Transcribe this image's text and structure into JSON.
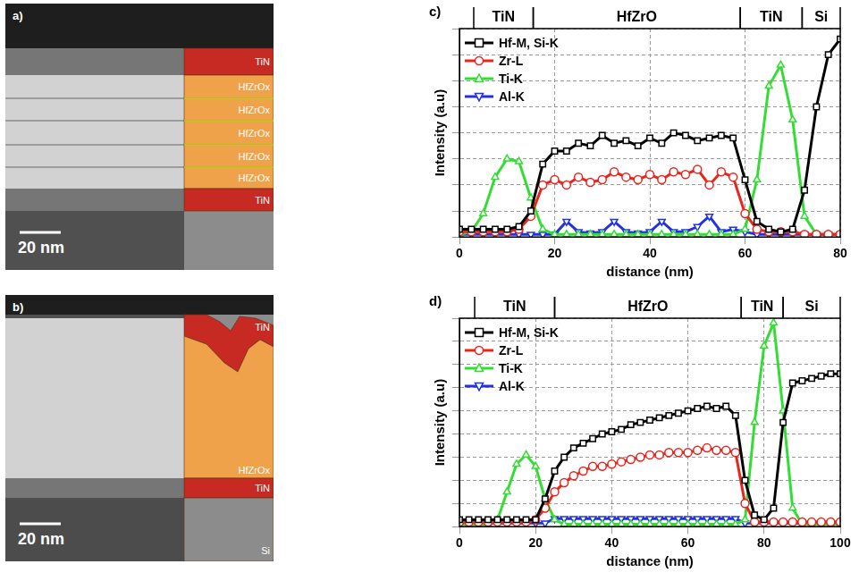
{
  "micrographs": [
    {
      "label": "a)",
      "layers": [
        "TiN",
        "HfZrOx",
        "HfZrOx",
        "HfZrOx",
        "HfZrOx",
        "HfZrOx",
        "TiN"
      ],
      "scale_bar": "20 nm"
    },
    {
      "label": "b)",
      "layers": [
        "TiN",
        "HfZrOx",
        "TiN",
        "Si"
      ],
      "scale_bar": "20 nm"
    }
  ],
  "chart_data": [
    {
      "type": "line",
      "label": "c)",
      "xlabel": "distance (nm)",
      "ylabel": "Intensity (a.u)",
      "xlim": [
        0,
        80
      ],
      "xticks": [
        0,
        20,
        40,
        60,
        80
      ],
      "ylim": [
        0,
        8
      ],
      "yticks": [
        0,
        1,
        2,
        3,
        4,
        5,
        6,
        7,
        8
      ],
      "grid": true,
      "legend": "upper left",
      "tick_labels": "x",
      "regions": [
        {
          "label": "TiN",
          "start": 3,
          "end": 15.5
        },
        {
          "label": "HfZrO",
          "start": 15.5,
          "end": 59
        },
        {
          "label": "TiN",
          "start": 59,
          "end": 72
        },
        {
          "label": "Si",
          "start": 72,
          "end": 80
        }
      ],
      "x": [
        0,
        2.5,
        5,
        7.5,
        10,
        12.5,
        15,
        17.5,
        20,
        22.5,
        25,
        27.5,
        30,
        32.5,
        35,
        37.5,
        40,
        42.5,
        45,
        47.5,
        50,
        52.5,
        55,
        57.5,
        60,
        62.5,
        65,
        67.5,
        70,
        72.5,
        75,
        77.5,
        80
      ],
      "series": [
        {
          "name": "Hf-M, Si-K",
          "color": "#000000",
          "marker": "square",
          "values": [
            0.3,
            0.3,
            0.3,
            0.3,
            0.3,
            0.4,
            1.0,
            2.8,
            3.3,
            3.3,
            3.6,
            3.5,
            3.9,
            3.6,
            3.7,
            3.5,
            3.8,
            3.6,
            4.0,
            3.9,
            3.7,
            3.8,
            3.9,
            3.8,
            2.2,
            0.6,
            0.3,
            0.2,
            0.3,
            1.8,
            5.0,
            7.0,
            7.6
          ]
        },
        {
          "name": "Zr-L",
          "color": "#e8241c",
          "marker": "circle",
          "values": [
            0.2,
            0.2,
            0.2,
            0.2,
            0.2,
            0.3,
            0.8,
            2.0,
            2.2,
            2.0,
            2.3,
            2.1,
            2.2,
            2.5,
            2.3,
            2.2,
            2.4,
            2.2,
            2.5,
            2.4,
            2.6,
            2.0,
            2.5,
            2.3,
            0.9,
            0.3,
            0.2,
            0.2,
            0.2,
            0.1,
            0.1,
            0.1,
            0.1
          ]
        },
        {
          "name": "Ti-K",
          "color": "#33dd33",
          "marker": "triangle",
          "values": [
            0.1,
            0.2,
            0.9,
            2.3,
            3.0,
            2.9,
            1.5,
            0.3,
            0.1,
            0.1,
            0.1,
            0.1,
            0.1,
            0.1,
            0.1,
            0.1,
            0.1,
            0.1,
            0.1,
            0.1,
            0.1,
            0.1,
            0.1,
            0.1,
            0.3,
            2.2,
            5.8,
            6.6,
            4.5,
            0.8,
            0.1,
            0.1,
            0.1
          ]
        },
        {
          "name": "Al-K",
          "color": "#2233dd",
          "marker": "triangle_down",
          "values": [
            0.1,
            0.1,
            0.1,
            0.1,
            0.1,
            0.1,
            0.1,
            0.1,
            0.1,
            0.6,
            0.2,
            0.15,
            0.2,
            0.6,
            0.2,
            0.15,
            0.2,
            0.6,
            0.2,
            0.2,
            0.4,
            0.8,
            0.2,
            0.3,
            0.2,
            0.1,
            0.1,
            0.1,
            0.1,
            0.1,
            0.1,
            0.1,
            0.1
          ]
        }
      ]
    },
    {
      "type": "line",
      "label": "d)",
      "xlabel": "distance (nm)",
      "ylabel": "Intensity (a.u)",
      "xlim": [
        0,
        100
      ],
      "xticks": [
        0,
        20,
        40,
        60,
        80,
        100
      ],
      "ylim": [
        0,
        9
      ],
      "yticks": [
        0,
        1,
        2,
        3,
        4,
        5,
        6,
        7,
        8,
        9
      ],
      "grid": true,
      "legend": "upper left",
      "tick_labels": "x",
      "regions": [
        {
          "label": "TiN",
          "start": 4,
          "end": 25
        },
        {
          "label": "HfZrO",
          "start": 25,
          "end": 74
        },
        {
          "label": "TiN",
          "start": 74,
          "end": 85
        },
        {
          "label": "Si",
          "start": 85,
          "end": 100
        }
      ],
      "x": [
        0,
        2.5,
        5,
        7.5,
        10,
        12.5,
        15,
        17.5,
        20,
        22.5,
        25,
        27.5,
        30,
        32.5,
        35,
        37.5,
        40,
        42.5,
        45,
        47.5,
        50,
        52.5,
        55,
        57.5,
        60,
        62.5,
        65,
        67.5,
        70,
        72.5,
        75,
        77.5,
        80,
        82.5,
        85,
        87.5,
        90,
        92.5,
        95,
        97.5,
        100
      ],
      "series": [
        {
          "name": "Hf-M, Si-K",
          "color": "#000000",
          "marker": "square",
          "values": [
            0.3,
            0.3,
            0.3,
            0.3,
            0.3,
            0.3,
            0.3,
            0.3,
            0.3,
            1.2,
            2.4,
            3.0,
            3.4,
            3.6,
            3.8,
            4.0,
            4.1,
            4.2,
            4.4,
            4.5,
            4.6,
            4.7,
            4.8,
            4.9,
            5.0,
            5.1,
            5.2,
            5.1,
            5.2,
            4.8,
            2.0,
            0.5,
            0.3,
            0.8,
            4.5,
            6.2,
            6.3,
            6.4,
            6.5,
            6.6,
            6.6
          ]
        },
        {
          "name": "Zr-L",
          "color": "#e8241c",
          "marker": "circle",
          "values": [
            0.2,
            0.2,
            0.2,
            0.2,
            0.2,
            0.2,
            0.2,
            0.2,
            0.3,
            0.8,
            1.5,
            1.9,
            2.2,
            2.4,
            2.6,
            2.6,
            2.7,
            2.8,
            2.9,
            3.0,
            3.1,
            3.1,
            3.2,
            3.2,
            3.2,
            3.3,
            3.4,
            3.3,
            3.3,
            3.2,
            1.0,
            0.2,
            0.2,
            0.2,
            0.2,
            0.2,
            0.2,
            0.2,
            0.2,
            0.2,
            0.2
          ]
        },
        {
          "name": "Ti-K",
          "color": "#33dd33",
          "marker": "triangle",
          "values": [
            0.1,
            0.1,
            0.1,
            0.1,
            0.3,
            1.5,
            2.7,
            3.1,
            2.6,
            1.2,
            0.3,
            0.1,
            0.1,
            0.1,
            0.1,
            0.1,
            0.1,
            0.1,
            0.1,
            0.1,
            0.1,
            0.1,
            0.1,
            0.1,
            0.1,
            0.1,
            0.1,
            0.1,
            0.1,
            0.1,
            0.3,
            4.5,
            7.8,
            8.8,
            5.0,
            0.8,
            0.1,
            0.1,
            0.1,
            0.1,
            0.1
          ]
        },
        {
          "name": "Al-K",
          "color": "#2233dd",
          "marker": "triangle_down",
          "values": [
            0.15,
            0.15,
            0.15,
            0.15,
            0.15,
            0.15,
            0.15,
            0.15,
            0.15,
            0.15,
            0.35,
            0.35,
            0.35,
            0.35,
            0.35,
            0.35,
            0.35,
            0.35,
            0.35,
            0.35,
            0.35,
            0.35,
            0.35,
            0.35,
            0.35,
            0.35,
            0.35,
            0.35,
            0.35,
            0.35,
            0.15,
            0.15,
            0.15,
            0.15,
            0.15,
            0.15,
            0.15,
            0.15,
            0.15,
            0.15,
            0.15
          ]
        }
      ]
    }
  ]
}
